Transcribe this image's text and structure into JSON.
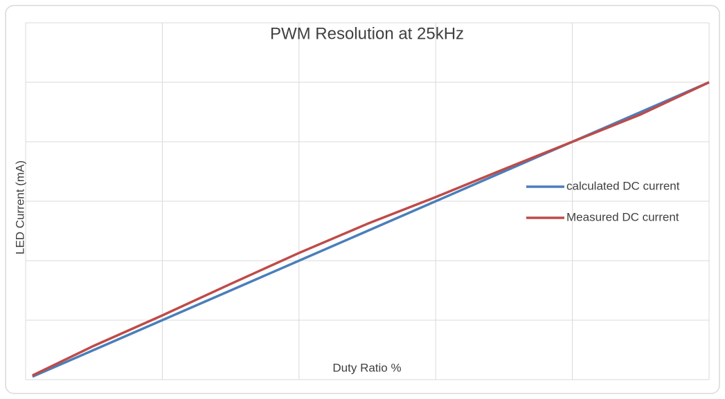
{
  "chart_data": {
    "type": "line",
    "title": "PWM Resolution at 25kHz",
    "x_label": "Duty Ratio %",
    "y_label": "LED Current (mA)",
    "x": [
      1,
      10,
      20,
      30,
      40,
      50,
      60,
      70,
      80,
      90,
      100
    ],
    "series": [
      {
        "name": "calculated DC current",
        "color": "#4a7ebb",
        "values": [
          0.5,
          5,
          10,
          15,
          20,
          25,
          30,
          35,
          40,
          45,
          50
        ]
      },
      {
        "name": "Measured DC current",
        "color": "#be4b48",
        "values": [
          0.7,
          5.7,
          10.8,
          16.1,
          21.3,
          26.2,
          30.7,
          35.4,
          40,
          44.6,
          50
        ]
      }
    ],
    "xlim": [
      0,
      100
    ],
    "xticks": [
      0,
      20,
      40,
      60,
      80,
      100
    ],
    "ylim": [
      0,
      60
    ],
    "yticks": [
      0,
      10,
      20,
      30,
      40,
      50,
      60
    ],
    "grid": true,
    "legend": "right"
  }
}
